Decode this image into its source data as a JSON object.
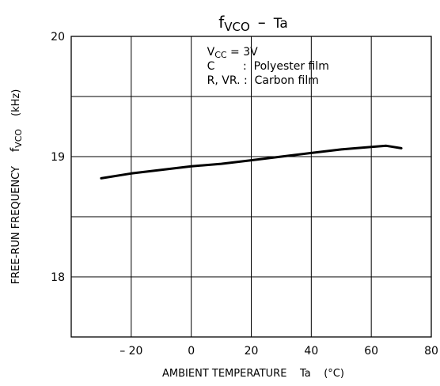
{
  "chart_data": {
    "type": "line",
    "title": {
      "main": "f",
      "main_sub": "VCO",
      "dash": "–",
      "tail": "Ta"
    },
    "xlabel": "AMBIENT TEMPERATURE    Ta    (°C)",
    "ylabel": {
      "text": "FREE-RUN FREQUENCY",
      "symbol": "f",
      "symbol_sub": "VCO",
      "unit": "(kHz)"
    },
    "xlim": [
      -40,
      80
    ],
    "ylim": [
      17.5,
      20
    ],
    "x_ticks": [
      -20,
      0,
      20,
      40,
      60,
      80
    ],
    "x_tick_labels": [
      "– 20",
      "0",
      "20",
      "40",
      "60",
      "80"
    ],
    "y_ticks": [
      18,
      19,
      20
    ],
    "y_tick_labels": [
      "18",
      "19",
      "20"
    ],
    "grid_x": [
      -20,
      0,
      20,
      40,
      60
    ],
    "grid_y": [
      18,
      18.5,
      19,
      19.5
    ],
    "grid": true,
    "annotation": [
      {
        "pre": "V",
        "sub": "CC",
        "post": " = 3V"
      },
      {
        "pre": "C",
        "sub": "",
        "post": "        :  Polyester film"
      },
      {
        "pre": "R, VR.",
        "sub": "",
        "post": " :  Carbon film"
      }
    ],
    "series": [
      {
        "x": [
          -30,
          -20,
          -10,
          0,
          10,
          20,
          30,
          40,
          50,
          60,
          65,
          70
        ],
        "y": [
          18.82,
          18.86,
          18.89,
          18.92,
          18.94,
          18.97,
          19.0,
          19.03,
          19.06,
          19.08,
          19.09,
          19.07
        ]
      }
    ],
    "line_color": "#000000"
  }
}
